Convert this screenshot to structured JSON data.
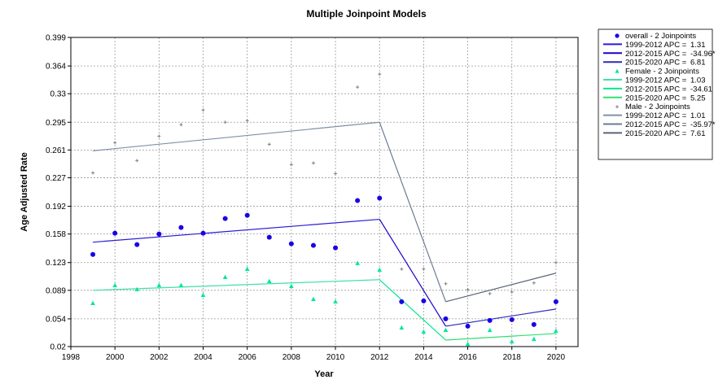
{
  "chart_data": {
    "type": "scatter",
    "title": "Multiple Joinpoint Models",
    "xlabel": "Year",
    "ylabel": "Age Adjusted Rate",
    "xlim": [
      1998,
      2021
    ],
    "ylim": [
      0.02,
      0.399
    ],
    "x_ticks": [
      1998,
      2000,
      2002,
      2004,
      2006,
      2008,
      2010,
      2012,
      2014,
      2016,
      2018,
      2020
    ],
    "y_ticks": [
      "0.02",
      "0.054",
      "0.089",
      "0.123",
      "0.158",
      "0.192",
      "0.227",
      "0.261",
      "0.295",
      "0.33",
      "0.364",
      "0.399"
    ],
    "grid": true,
    "legend_position": "right",
    "series": [
      {
        "name": "overall - 2 Joinpoints",
        "marker": "circle",
        "color": "#1a00e6",
        "x": [
          1999,
          2000,
          2001,
          2002,
          2003,
          2004,
          2005,
          2006,
          2007,
          2008,
          2009,
          2010,
          2011,
          2012,
          2013,
          2014,
          2015,
          2016,
          2017,
          2018,
          2019,
          2020
        ],
        "y": [
          0.133,
          0.159,
          0.145,
          0.158,
          0.166,
          0.159,
          0.177,
          0.181,
          0.154,
          0.146,
          0.144,
          0.141,
          0.199,
          0.202,
          0.075,
          0.076,
          0.054,
          0.045,
          0.052,
          0.053,
          0.047,
          0.075
        ],
        "fit_x": [
          1999,
          2012,
          2015,
          2020
        ],
        "fit_y": [
          0.148,
          0.176,
          0.045,
          0.066
        ],
        "segments": [
          {
            "label": "1999-2012 APC = ",
            "value": "1.31"
          },
          {
            "label": "2012-2015 APC = ",
            "value": "-34.96*"
          },
          {
            "label": "2015-2020 APC = ",
            "value": "6.81"
          }
        ]
      },
      {
        "name": "Female - 2 Joinpoints",
        "marker": "triangle",
        "color": "#00e6a0",
        "x": [
          1999,
          2000,
          2001,
          2002,
          2003,
          2004,
          2005,
          2006,
          2007,
          2008,
          2009,
          2010,
          2011,
          2012,
          2013,
          2014,
          2015,
          2016,
          2017,
          2018,
          2019,
          2020
        ],
        "y": [
          0.073,
          0.095,
          0.09,
          0.095,
          0.095,
          0.083,
          0.105,
          0.115,
          0.1,
          0.094,
          0.078,
          0.075,
          0.122,
          0.114,
          0.043,
          0.038,
          0.04,
          0.023,
          0.04,
          0.026,
          0.029,
          0.039
        ],
        "fit_x": [
          1999,
          2012,
          2015,
          2020
        ],
        "fit_y": [
          0.089,
          0.102,
          0.028,
          0.036
        ],
        "segments": [
          {
            "label": "1999-2012 APC = ",
            "value": "1.03"
          },
          {
            "label": "2012-2015 APC = ",
            "value": "-34.61"
          },
          {
            "label": "2015-2020 APC = ",
            "value": "5.25"
          }
        ]
      },
      {
        "name": "Male - 2 Joinpoints",
        "marker": "plus",
        "color": "#808080",
        "x": [
          1999,
          2000,
          2001,
          2002,
          2003,
          2004,
          2005,
          2006,
          2007,
          2008,
          2009,
          2010,
          2011,
          2012,
          2013,
          2014,
          2015,
          2016,
          2017,
          2018,
          2019,
          2020
        ],
        "y": [
          0.233,
          0.27,
          0.248,
          0.278,
          0.292,
          0.31,
          0.295,
          0.297,
          0.268,
          0.243,
          0.245,
          0.232,
          0.338,
          0.354,
          0.115,
          0.115,
          0.097,
          0.09,
          0.085,
          0.087,
          0.098,
          0.123
        ],
        "fit_x": [
          1999,
          2012,
          2015,
          2020
        ],
        "fit_y": [
          0.26,
          0.295,
          0.075,
          0.11
        ],
        "segments": [
          {
            "label": "1999-2012 APC = ",
            "value": "1.01"
          },
          {
            "label": "2012-2015 APC = ",
            "value": "-35.97*"
          },
          {
            "label": "2015-2020 APC = ",
            "value": "7.61"
          }
        ]
      }
    ],
    "segment_colors": [
      [
        "#2a1ad6",
        "#1a00c8",
        "#2a2ab8"
      ],
      [
        "#40e0a8",
        "#00e888",
        "#30e070"
      ],
      [
        "#8090a8",
        "#6b7b93",
        "#5a6478"
      ]
    ]
  }
}
